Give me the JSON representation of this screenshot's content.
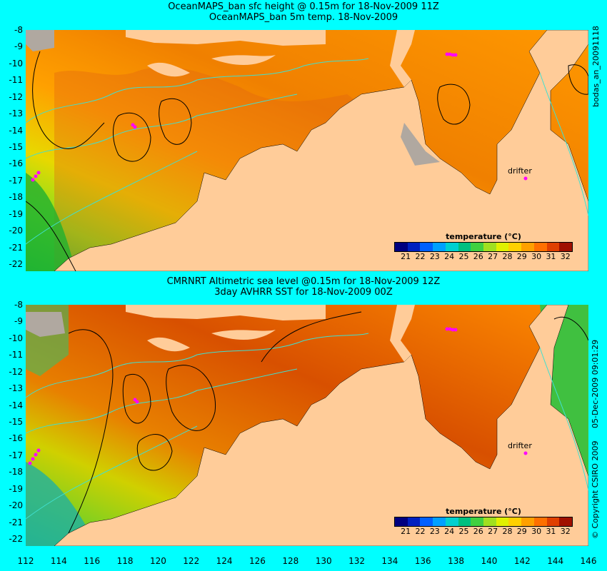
{
  "top_panel": {
    "title_line1": "OceanMAPS_ban sfc height @ 0.15m for 18-Nov-2009 11Z",
    "title_line2": "OceanMAPS_ban 5m temp. 18-Nov-2009",
    "drifter_label": "drifter"
  },
  "bottom_panel": {
    "title_line1": "CMRNRT Altimetric sea level  @0.15m  for 18-Nov-2009 12Z",
    "title_line2": "3day AVHRR SST for 18-Nov-2009 00Z",
    "drifter_label": "drifter"
  },
  "y_axis_ticks": [
    "-8",
    "-9",
    "-10",
    "-11",
    "-12",
    "-13",
    "-14",
    "-15",
    "-16",
    "-17",
    "-18",
    "-19",
    "-20",
    "-21",
    "-22"
  ],
  "x_axis_ticks": [
    "112",
    "114",
    "116",
    "118",
    "120",
    "122",
    "124",
    "126",
    "128",
    "130",
    "132",
    "134",
    "136",
    "138",
    "140",
    "142",
    "144",
    "146"
  ],
  "colorbar": {
    "title": "temperature (°C)",
    "ticks": [
      "21",
      "22",
      "23",
      "24",
      "25",
      "26",
      "27",
      "28",
      "29",
      "30",
      "31",
      "32"
    ],
    "colors": [
      "#000080",
      "#0020c0",
      "#0060ff",
      "#00a0ff",
      "#00d0d0",
      "#00c080",
      "#40d040",
      "#a0e020",
      "#e0f000",
      "#ffd000",
      "#ffa000",
      "#ff7000",
      "#e04000",
      "#a01000"
    ]
  },
  "side_labels": {
    "top_right": "bodas_an_20091118",
    "bottom_right_date": "05-Dec-2009 09:01:29",
    "bottom_right_copyright": "© Copyright CSIRO 2009"
  },
  "colors": {
    "background": "#00ffff",
    "land": "#ffcc99",
    "no_data": "#b0a8a0",
    "contour": "#000000",
    "bathymetry": "#40e0d0",
    "drifter": "#ff00ff"
  }
}
